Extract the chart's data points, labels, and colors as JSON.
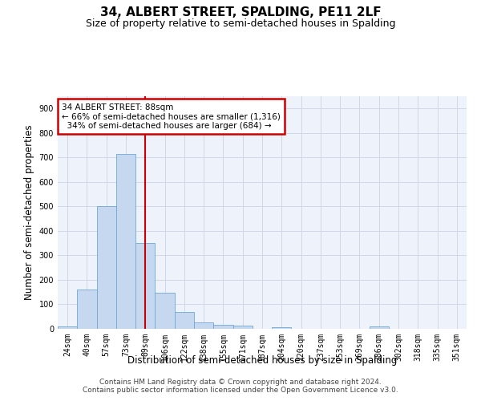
{
  "title": "34, ALBERT STREET, SPALDING, PE11 2LF",
  "subtitle": "Size of property relative to semi-detached houses in Spalding",
  "xlabel": "Distribution of semi-detached houses by size in Spalding",
  "ylabel": "Number of semi-detached properties",
  "footer_line1": "Contains HM Land Registry data © Crown copyright and database right 2024.",
  "footer_line2": "Contains public sector information licensed under the Open Government Licence v3.0.",
  "categories": [
    "24sqm",
    "40sqm",
    "57sqm",
    "73sqm",
    "89sqm",
    "106sqm",
    "122sqm",
    "138sqm",
    "155sqm",
    "171sqm",
    "187sqm",
    "204sqm",
    "220sqm",
    "237sqm",
    "253sqm",
    "269sqm",
    "286sqm",
    "302sqm",
    "318sqm",
    "335sqm",
    "351sqm"
  ],
  "values": [
    10,
    160,
    500,
    715,
    350,
    148,
    70,
    25,
    15,
    12,
    0,
    8,
    0,
    0,
    0,
    0,
    10,
    0,
    0,
    0,
    0
  ],
  "bar_color": "#c5d8f0",
  "bar_edge_color": "#6fa8d6",
  "property_label": "34 ALBERT STREET: 88sqm",
  "pct_smaller": 66,
  "pct_larger": 34,
  "count_smaller": 1316,
  "count_larger": 684,
  "vline_color": "#cc0000",
  "annotation_box_edge": "#cc0000",
  "ylim": [
    0,
    950
  ],
  "yticks": [
    0,
    100,
    200,
    300,
    400,
    500,
    600,
    700,
    800,
    900
  ],
  "grid_color": "#d0d8e8",
  "bg_color": "#eef2fa",
  "title_fontsize": 11,
  "subtitle_fontsize": 9,
  "axis_label_fontsize": 8.5,
  "tick_fontsize": 7,
  "footer_fontsize": 6.5,
  "ann_fontsize": 7.5
}
